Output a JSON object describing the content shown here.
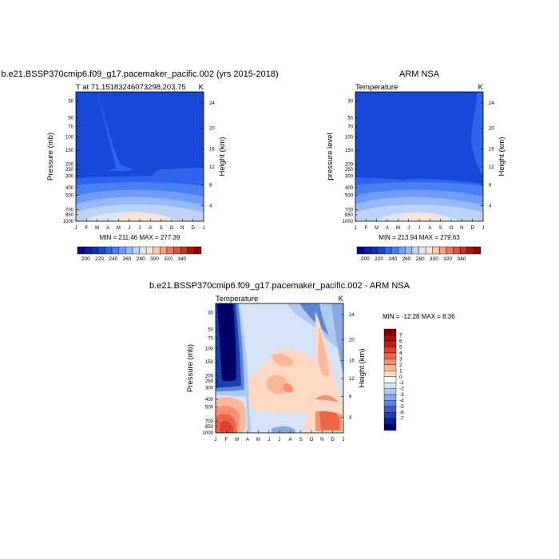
{
  "chart_data": [
    {
      "type": "heatmap",
      "title": "b.e21.BSSP370cmip6.f09_g17.pacemaker_pacific.002 (yrs 2015-2018)",
      "left_label": "T at 71.15183246073298,203.75",
      "right_label": "K",
      "ylabel": "Pressure (mb)",
      "ylabel_right": "Height (km)",
      "x_ticks": [
        "J",
        "F",
        "M",
        "A",
        "M",
        "J",
        "J",
        "A",
        "S",
        "O",
        "N",
        "D",
        "J"
      ],
      "y_ticks": [
        "30",
        "50",
        "70",
        "100",
        "150",
        "200",
        "250",
        "300",
        "400",
        "500",
        "700",
        "850",
        "1000"
      ],
      "height_ticks": [
        "4",
        "8",
        "12",
        "16",
        "20",
        "24"
      ],
      "stats": "MIN = 211.46 MAX = 277.39",
      "colorbar": {
        "labels": [
          "200",
          "220",
          "240",
          "260",
          "280",
          "300",
          "320",
          "340"
        ],
        "colors": [
          "#08088a",
          "#0b1ea8",
          "#0d30c0",
          "#1848d8",
          "#2e64ee",
          "#4a80f5",
          "#6e9cf8",
          "#96b9f8",
          "#bcd2f6",
          "#dde7f3",
          "#fbe4d2",
          "#f8c7aa",
          "#f3a282",
          "#ea7b5f",
          "#dd5440",
          "#c8321f",
          "#a9180e",
          "#8a0808"
        ]
      }
    },
    {
      "type": "heatmap",
      "title": "ARM NSA",
      "left_label": "Temperature",
      "right_label": "K",
      "ylabel": "pressure level",
      "ylabel_right": "Height (km)",
      "x_ticks": [
        "J",
        "F",
        "M",
        "A",
        "M",
        "J",
        "J",
        "A",
        "S",
        "O",
        "N",
        "D",
        "J"
      ],
      "y_ticks": [
        "30",
        "50",
        "70",
        "100",
        "150",
        "200",
        "250",
        "300",
        "400",
        "500",
        "700",
        "850",
        "1000"
      ],
      "height_ticks": [
        "4",
        "8",
        "12",
        "16",
        "20",
        "24"
      ],
      "stats": "MIN = 213.94 MAX = 279.63",
      "colorbar": {
        "labels": [
          "200",
          "220",
          "240",
          "260",
          "280",
          "300",
          "320",
          "340"
        ],
        "colors": [
          "#08088a",
          "#0b1ea8",
          "#0d30c0",
          "#1848d8",
          "#2e64ee",
          "#4a80f5",
          "#6e9cf8",
          "#96b9f8",
          "#bcd2f6",
          "#dde7f3",
          "#fbe4d2",
          "#f8c7aa",
          "#f3a282",
          "#ea7b5f",
          "#dd5440",
          "#c8321f",
          "#a9180e",
          "#8a0808"
        ]
      }
    },
    {
      "type": "heatmap",
      "title": "b.e21.BSSP370cmip6.f09_g17.pacemaker_pacific.002 - ARM NSA",
      "left_label": "Temperature",
      "right_label": "K",
      "ylabel": "Pressure (mb)",
      "ylabel_right": "Height (km)",
      "x_ticks": [
        "J",
        "F",
        "M",
        "A",
        "M",
        "J",
        "J",
        "A",
        "S",
        "O",
        "N",
        "D",
        "J"
      ],
      "y_ticks": [
        "30",
        "50",
        "70",
        "100",
        "150",
        "200",
        "250",
        "300",
        "400",
        "500",
        "700",
        "850",
        "1000"
      ],
      "height_ticks": [
        "4",
        "8",
        "12",
        "16",
        "20",
        "24"
      ],
      "stats": "MIN = -12.28 MAX =   8.36",
      "colorbar": {
        "labels": [
          "7",
          "6",
          "5",
          "4",
          "3",
          "2",
          "1",
          "0",
          "-1",
          "-2",
          "-3",
          "-4",
          "-5",
          "-6",
          "-7"
        ],
        "colors": [
          "#7f0000",
          "#a50f15",
          "#cb181d",
          "#e0402f",
          "#ef6548",
          "#f6906f",
          "#fbb898",
          "#fdd9c4",
          "#ffffff",
          "#d6e3f6",
          "#aec8ef",
          "#86a9e4",
          "#5d84d6",
          "#3760c6",
          "#1a3fb0",
          "#0b1f8e",
          "#000066"
        ]
      }
    }
  ]
}
